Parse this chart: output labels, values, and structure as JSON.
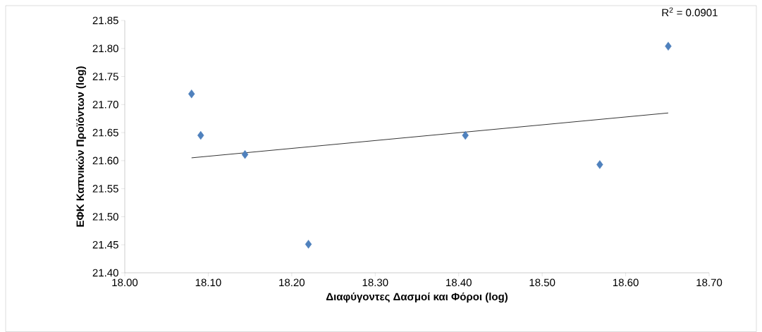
{
  "chart_data": {
    "type": "scatter",
    "xlabel": "Διαφύγοντες Δασμοί και Φόροι (log)",
    "ylabel": "ΕΦΚ Καπνικών Προϊόντων (log)",
    "annotations": [
      "R$^{2}$ = 0.0901"
    ],
    "xlim": [
      18.0,
      18.7
    ],
    "ylim": [
      21.4,
      21.85
    ],
    "xticks": [
      {
        "value": 18.0,
        "label": "18.00"
      },
      {
        "value": 18.1,
        "label": "18.10"
      },
      {
        "value": 18.2,
        "label": "18.20"
      },
      {
        "value": 18.3,
        "label": "18.30"
      },
      {
        "value": 18.4,
        "label": "18.40"
      },
      {
        "value": 18.5,
        "label": "18.50"
      },
      {
        "value": 18.6,
        "label": "18.60"
      },
      {
        "value": 18.7,
        "label": "18.70"
      }
    ],
    "yticks": [
      {
        "value": 21.4,
        "label": "21.40"
      },
      {
        "value": 21.45,
        "label": "21.45"
      },
      {
        "value": 21.5,
        "label": "21.50"
      },
      {
        "value": 21.55,
        "label": "21.55"
      },
      {
        "value": 21.6,
        "label": "21.60"
      },
      {
        "value": 21.65,
        "label": "21.65"
      },
      {
        "value": 21.7,
        "label": "21.70"
      },
      {
        "value": 21.75,
        "label": "21.75"
      },
      {
        "value": 21.8,
        "label": "21.80"
      },
      {
        "value": 21.85,
        "label": "21.85"
      }
    ],
    "marker": "diamond",
    "series": [
      {
        "color": "#4f81bd",
        "x": [
          18.08,
          18.091,
          18.144,
          18.22,
          18.408,
          18.569,
          18.651
        ],
        "values": [
          21.719,
          21.645,
          21.611,
          21.451,
          21.645,
          21.593,
          21.804
        ]
      },
      {
        "type": "line",
        "marker": "none",
        "color": "#000000",
        "x": [
          18.08,
          18.651
        ],
        "values": [
          21.605,
          21.685
        ]
      }
    ]
  }
}
